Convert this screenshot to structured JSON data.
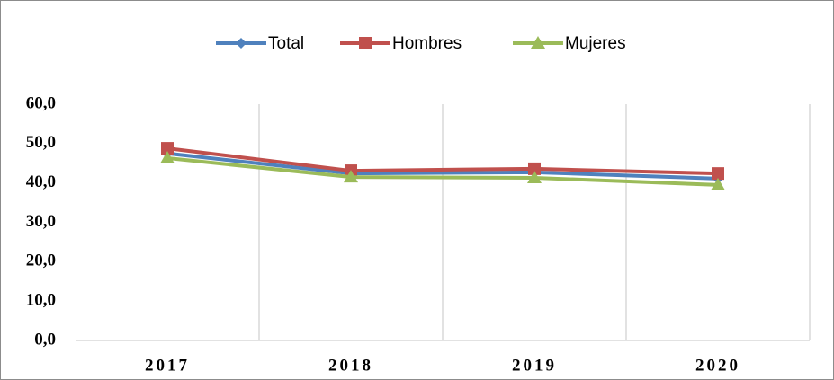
{
  "chart_data": {
    "type": "line",
    "categories": [
      "2017",
      "2018",
      "2019",
      "2020"
    ],
    "series": [
      {
        "name": "Total",
        "color": "#4f81bd",
        "marker": "diamond",
        "values": [
          47.5,
          42.4,
          42.7,
          41.1
        ]
      },
      {
        "name": "Hombres",
        "color": "#c0504d",
        "marker": "square",
        "values": [
          48.8,
          43.1,
          43.6,
          42.4
        ]
      },
      {
        "name": "Mujeres",
        "color": "#9bbb59",
        "marker": "triangle",
        "values": [
          46.3,
          41.5,
          41.3,
          39.5
        ]
      }
    ],
    "ylim": [
      0,
      60
    ],
    "yticks": [
      {
        "value": 0,
        "label": "0,0"
      },
      {
        "value": 10,
        "label": "10,0"
      },
      {
        "value": 20,
        "label": "20,0"
      },
      {
        "value": 30,
        "label": "30,0"
      },
      {
        "value": 40,
        "label": "40,0"
      },
      {
        "value": 50,
        "label": "50,0"
      },
      {
        "value": 60,
        "label": "60,0"
      }
    ],
    "grid": true,
    "legend": "top"
  }
}
